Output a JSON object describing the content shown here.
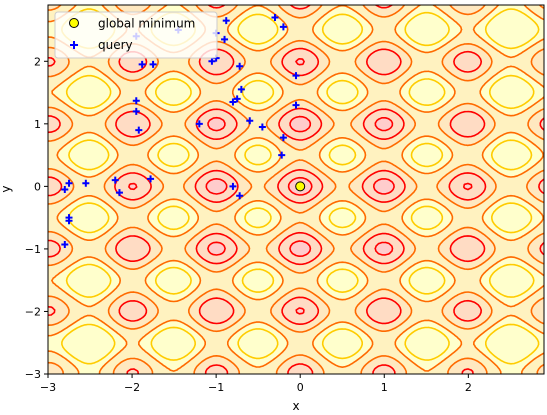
{
  "chart_data": {
    "type": "scatter",
    "title": "",
    "xlabel": "x",
    "ylabel": "y",
    "xlim": [
      -3,
      2.9
    ],
    "ylim": [
      -3,
      2.9
    ],
    "x_ticks": [
      -3,
      -2,
      -1,
      0,
      1,
      2
    ],
    "y_ticks": [
      -3,
      -2,
      -1,
      0,
      1,
      2
    ],
    "x_tick_labels": [
      "−3",
      "−2",
      "−1",
      "0",
      "1",
      "2"
    ],
    "y_tick_labels": [
      "−3",
      "−2",
      "−1",
      "0",
      "1",
      "2"
    ],
    "legend": {
      "placement": "upper-left",
      "entries": [
        "global minimum",
        "query"
      ]
    },
    "background": {
      "kind": "filled-contour",
      "description": "periodic objective surface, levels from low (red) to high (light yellow)",
      "colors": [
        "#ffcccc",
        "#ffdcc4",
        "#ffe8c0",
        "#fff2c0",
        "#ffffcc"
      ],
      "line_colors": [
        "#ff0000",
        "#ff6a00",
        "#ffcc00"
      ]
    },
    "series": [
      {
        "name": "global minimum",
        "marker": "circle",
        "color": "#ffff00",
        "edge_color": "#000000",
        "points": [
          [
            0.0,
            0.0
          ]
        ]
      },
      {
        "name": "query",
        "marker": "plus",
        "color": "#0000ff",
        "points": [
          [
            -2.75,
            0.05
          ],
          [
            -2.8,
            -0.05
          ],
          [
            -2.75,
            -0.5
          ],
          [
            -2.75,
            -0.55
          ],
          [
            -2.8,
            -0.93
          ],
          [
            -2.55,
            0.05
          ],
          [
            -2.2,
            0.1
          ],
          [
            -2.15,
            -0.1
          ],
          [
            -1.78,
            0.12
          ],
          [
            -1.95,
            1.37
          ],
          [
            -1.95,
            1.2
          ],
          [
            -1.92,
            0.9
          ],
          [
            -1.88,
            1.95
          ],
          [
            -1.75,
            1.95
          ],
          [
            -1.95,
            2.4
          ],
          [
            -1.45,
            2.5
          ],
          [
            -1.05,
            2.0
          ],
          [
            -1.0,
            2.05
          ],
          [
            -1.0,
            2.45
          ],
          [
            -0.9,
            2.35
          ],
          [
            -0.88,
            2.65
          ],
          [
            -0.8,
            1.35
          ],
          [
            -0.75,
            1.4
          ],
          [
            -0.7,
            1.55
          ],
          [
            -0.72,
            1.92
          ],
          [
            -0.6,
            1.05
          ],
          [
            -0.45,
            0.95
          ],
          [
            -1.2,
            1.0
          ],
          [
            -0.2,
            0.78
          ],
          [
            -0.8,
            0.0
          ],
          [
            -0.72,
            -0.15
          ],
          [
            -0.22,
            0.5
          ],
          [
            -0.05,
            1.77
          ],
          [
            -0.05,
            1.3
          ],
          [
            -0.3,
            2.7
          ],
          [
            -0.2,
            2.55
          ]
        ]
      }
    ]
  }
}
